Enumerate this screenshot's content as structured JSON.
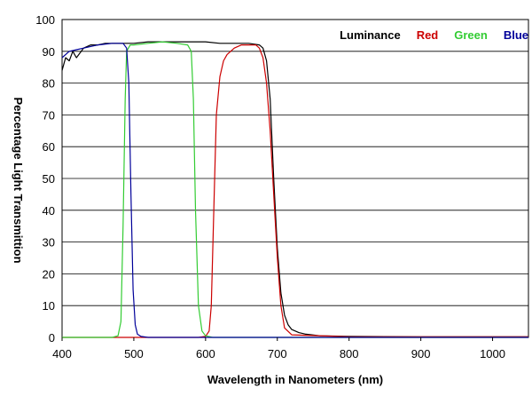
{
  "chart_data": {
    "type": "line",
    "title": "",
    "xlabel": "Wavelength in Nanometers (nm)",
    "ylabel": "Percentage Light Transmittion",
    "xlim": [
      400,
      1050
    ],
    "ylim": [
      0,
      100
    ],
    "x_ticks": [
      400,
      500,
      600,
      700,
      800,
      900,
      1000
    ],
    "y_ticks": [
      0,
      10,
      20,
      30,
      40,
      50,
      60,
      70,
      80,
      90,
      100
    ],
    "grid": "horizontal",
    "legend_position": "top-right",
    "series": [
      {
        "name": "Luminance",
        "color": "#000000",
        "x": [
          400,
          405,
          410,
          415,
          420,
          430,
          440,
          450,
          460,
          480,
          500,
          520,
          540,
          560,
          580,
          600,
          620,
          640,
          660,
          675,
          680,
          685,
          690,
          695,
          700,
          705,
          710,
          715,
          720,
          730,
          740,
          760,
          800,
          900,
          1000,
          1050
        ],
        "y": [
          84,
          88,
          87,
          90,
          88,
          91,
          92,
          92,
          92.5,
          92.5,
          92.5,
          93,
          93,
          93,
          93,
          93,
          92.5,
          92.5,
          92.5,
          92,
          91,
          87,
          75,
          50,
          28,
          14,
          7,
          4,
          2.5,
          1.5,
          1,
          0.5,
          0.3,
          0.2,
          0.2,
          0.2
        ]
      },
      {
        "name": "Red",
        "color": "#cc0000",
        "x": [
          400,
          500,
          590,
          600,
          605,
          608,
          612,
          615,
          620,
          625,
          630,
          640,
          650,
          660,
          670,
          675,
          680,
          685,
          690,
          695,
          700,
          705,
          710,
          720,
          800,
          1050
        ],
        "y": [
          0,
          0,
          0,
          0.3,
          2,
          10,
          45,
          70,
          82,
          87,
          89,
          91,
          92,
          92,
          92,
          91,
          88,
          80,
          65,
          45,
          25,
          10,
          3,
          0.8,
          0.2,
          0.2
        ]
      },
      {
        "name": "Green",
        "color": "#33cc33",
        "x": [
          400,
          470,
          478,
          482,
          485,
          488,
          490,
          495,
          500,
          520,
          540,
          560,
          575,
          580,
          583,
          586,
          590,
          595,
          600,
          610,
          700,
          1050
        ],
        "y": [
          0,
          0,
          0.5,
          5,
          35,
          75,
          90,
          92,
          92,
          92.5,
          93,
          92.5,
          92,
          90,
          75,
          40,
          10,
          2,
          0.5,
          0,
          0,
          0
        ]
      },
      {
        "name": "Blue",
        "color": "#000099",
        "x": [
          400,
          405,
          410,
          420,
          430,
          450,
          470,
          485,
          490,
          493,
          496,
          499,
          502,
          505,
          510,
          520,
          600,
          800,
          1050
        ],
        "y": [
          88,
          89,
          90,
          90.5,
          91,
          92,
          92.5,
          92.5,
          91,
          80,
          45,
          15,
          4,
          1,
          0.3,
          0,
          0,
          0,
          0
        ]
      }
    ]
  }
}
